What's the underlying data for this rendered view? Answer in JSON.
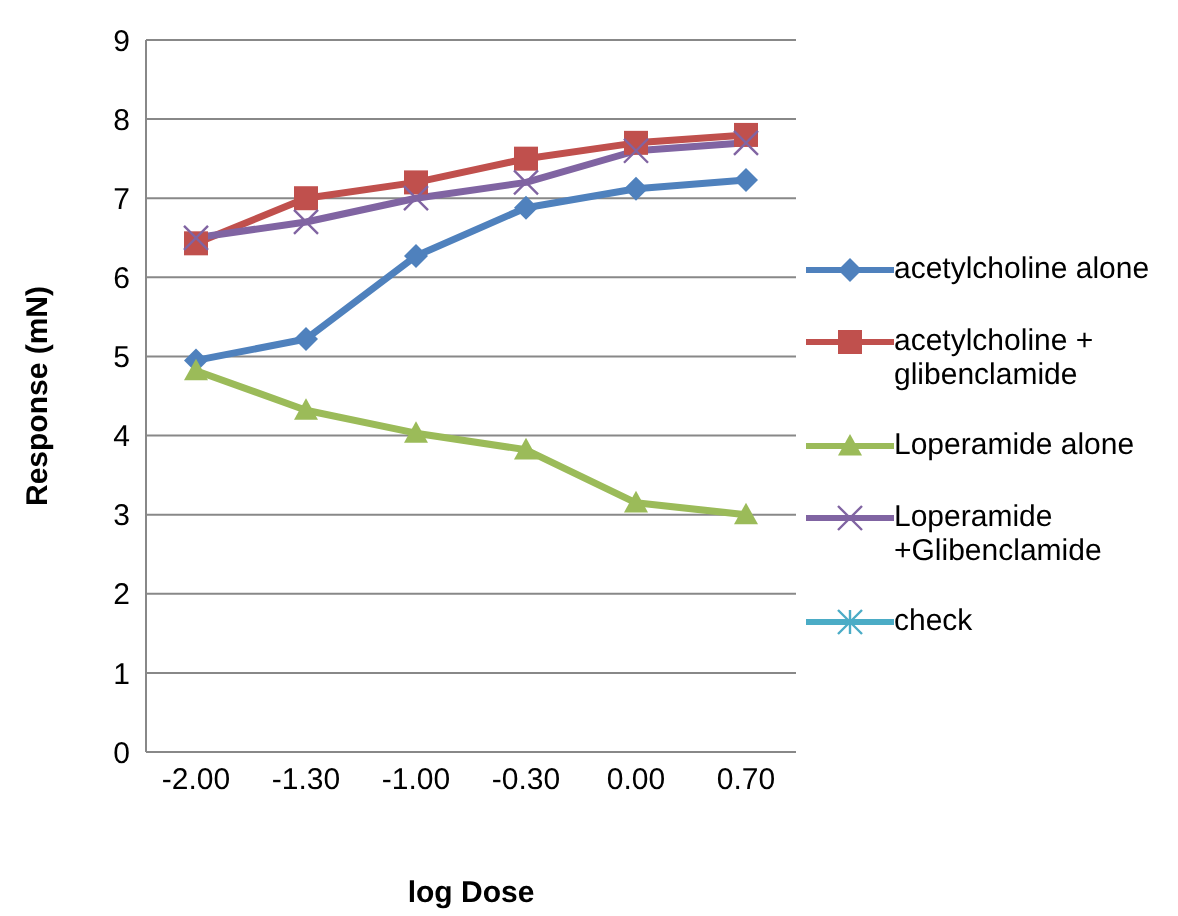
{
  "chart_data": {
    "type": "line",
    "xlabel": "log Dose",
    "ylabel": "Response (mN)",
    "categories": [
      "-2.00",
      "-1.30",
      "-1.00",
      "-0.30",
      "0.00",
      "0.70"
    ],
    "ylim": [
      0,
      9
    ],
    "yticks": [
      0,
      1,
      2,
      3,
      4,
      5,
      6,
      7,
      8,
      9
    ],
    "grid": "y",
    "legend": "right",
    "series": [
      {
        "name": "acetylcholine alone",
        "color": "#4f81bd",
        "marker": "diamond",
        "values": [
          4.95,
          5.22,
          6.27,
          6.88,
          7.12,
          7.23
        ]
      },
      {
        "name": "acetylcholine + glibenclamide",
        "color": "#c0504d",
        "marker": "square",
        "values": [
          6.43,
          7.0,
          7.2,
          7.5,
          7.7,
          7.8
        ]
      },
      {
        "name": "Loperamide alone",
        "color": "#9bbb59",
        "marker": "triangle",
        "values": [
          4.82,
          4.32,
          4.03,
          3.82,
          3.15,
          3.0
        ]
      },
      {
        "name": "Loperamide +Glibenclamide",
        "color": "#8064a2",
        "marker": "cross",
        "values": [
          6.5,
          6.7,
          7.0,
          7.2,
          7.6,
          7.7
        ]
      },
      {
        "name": "check",
        "color": "#4bacc6",
        "marker": "star",
        "values": [
          null,
          null,
          null,
          null,
          null,
          null
        ]
      }
    ]
  }
}
